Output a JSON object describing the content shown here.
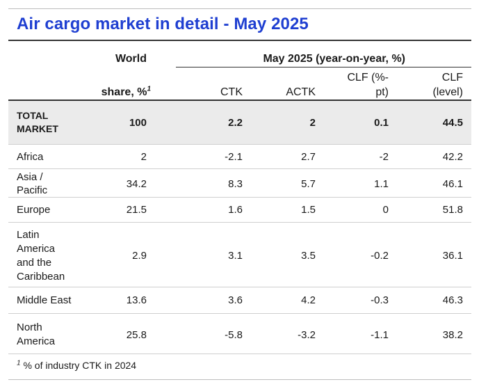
{
  "title": "Air cargo market in detail - May 2025",
  "header": {
    "world_line1": "World",
    "world_line2": "share, %",
    "world_sup": "1",
    "group_label": "May 2025 (year-on-year, %)",
    "ctk": "CTK",
    "actk": "ACTK",
    "clf_pt_line1": "CLF (%-",
    "clf_pt_line2": "pt)",
    "clf_level_line1": "CLF",
    "clf_level_line2": "(level)"
  },
  "total": {
    "region_line1": "TOTAL",
    "region_line2": "MARKET",
    "share": "100",
    "ctk": "2.2",
    "actk": "2",
    "clf_pt": "0.1",
    "clf_level": "44.5"
  },
  "rows": [
    {
      "region": [
        "Africa"
      ],
      "share": "2",
      "ctk": "-2.1",
      "actk": "2.7",
      "clf_pt": "-2",
      "clf_level": "42.2"
    },
    {
      "region": [
        "Asia /",
        "Pacific"
      ],
      "share": "34.2",
      "ctk": "8.3",
      "actk": "5.7",
      "clf_pt": "1.1",
      "clf_level": "46.1"
    },
    {
      "region": [
        "Europe"
      ],
      "share": "21.5",
      "ctk": "1.6",
      "actk": "1.5",
      "clf_pt": "0",
      "clf_level": "51.8"
    },
    {
      "region": [
        "Latin",
        "America",
        "and the",
        "Caribbean"
      ],
      "share": "2.9",
      "ctk": "3.1",
      "actk": "3.5",
      "clf_pt": "-0.2",
      "clf_level": "36.1"
    },
    {
      "region": [
        "Middle East"
      ],
      "share": "13.6",
      "ctk": "3.6",
      "actk": "4.2",
      "clf_pt": "-0.3",
      "clf_level": "46.3"
    },
    {
      "region": [
        "North",
        "America"
      ],
      "share": "25.8",
      "ctk": "-5.8",
      "actk": "-3.2",
      "clf_pt": "-1.1",
      "clf_level": "38.2"
    }
  ],
  "footnote": {
    "sup": "1",
    "text": "% of industry CTK in 2024"
  }
}
